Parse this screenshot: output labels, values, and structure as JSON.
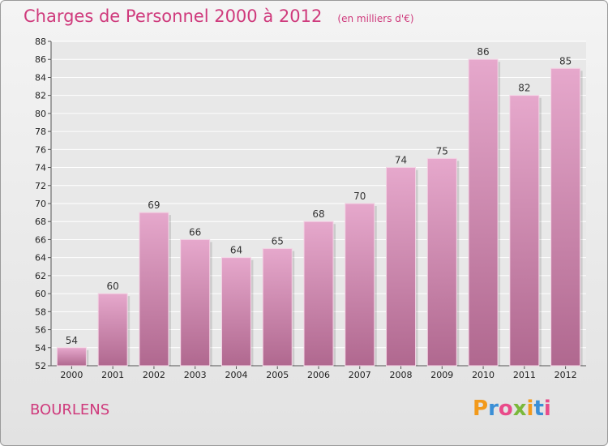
{
  "header": {
    "title": "Charges de Personnel 2000 à 2012",
    "subtitle": "(en milliers d'€)"
  },
  "commune": "BOURLENS",
  "brand": {
    "letters": [
      "P",
      "r",
      "o",
      "x",
      "i",
      "t",
      "i"
    ],
    "colors": [
      "#f29a1c",
      "#3b8fd6",
      "#e94b8a",
      "#7ab83a",
      "#f29a1c",
      "#3b8fd6",
      "#e94b8a"
    ]
  },
  "colors": {
    "accent": "#cf3a7c",
    "bar_top": "#e6a8cc",
    "bar_bottom": "#b0688f",
    "grid": "#ffffff"
  },
  "chart_data": {
    "type": "bar",
    "categories": [
      "2000",
      "2001",
      "2002",
      "2003",
      "2004",
      "2005",
      "2006",
      "2007",
      "2008",
      "2009",
      "2010",
      "2011",
      "2012"
    ],
    "values": [
      54,
      60,
      69,
      66,
      64,
      65,
      68,
      70,
      74,
      75,
      86,
      82,
      85
    ],
    "title": "Charges de Personnel 2000 à 2012",
    "ylim": [
      52,
      88
    ],
    "yticks": [
      52,
      54,
      56,
      58,
      60,
      62,
      64,
      66,
      68,
      70,
      72,
      74,
      76,
      78,
      80,
      82,
      84,
      86,
      88
    ],
    "grid": true
  }
}
